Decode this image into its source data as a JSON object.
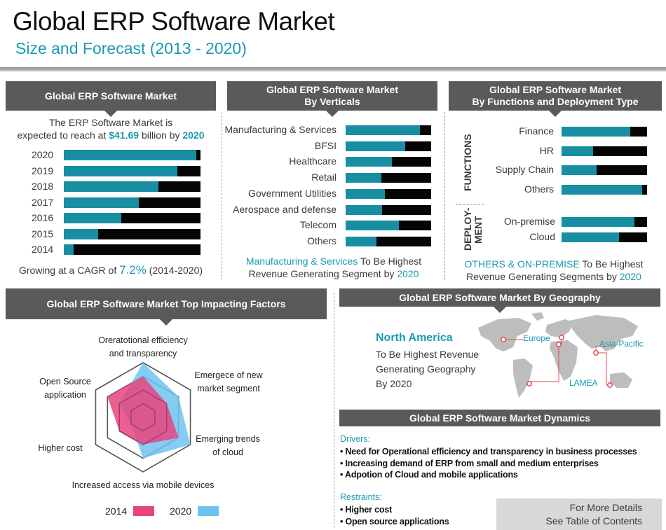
{
  "header": {
    "title": "Global ERP Software Market",
    "subtitle": "Size and Forecast (2013 - 2020)"
  },
  "colors": {
    "teal": "#188ea3",
    "black": "#050505",
    "header_gray": "#5a5a5a",
    "pink": "#e8437f",
    "light_blue": "#6ec3ee",
    "accent_text": "#1a9ab2"
  },
  "market": {
    "header": "Global ERP Software Market",
    "intro_1": "The ERP Software Market is",
    "intro_2a": "expected to reach at ",
    "intro_value": "$41.69",
    "intro_2b": " billion by ",
    "intro_year": "2020",
    "cagr_a": "Growing at a CAGR of ",
    "cagr_value": "7.2%",
    "cagr_b": " (2014-2020)"
  },
  "verticals": {
    "header_1": "Global ERP Software Market",
    "header_2": "By  Verticals",
    "caption_highlight": "Manufacturing & Services",
    "caption_a": " To Be Highest",
    "caption_b": "Revenue Generating Segment by ",
    "caption_year": "2020"
  },
  "functions": {
    "header_1": "Global ERP Software Market",
    "header_2": "By Functions and Deployment Type",
    "functions_label": "FUNCTIONS",
    "deployment_label_1": "DEPLOY-",
    "deployment_label_2": "MENT",
    "caption_highlight": "OTHERS & ON-PREMISE",
    "caption_a": " To Be Highest",
    "caption_b": "Revenue Generating Segments by ",
    "caption_year": "2020"
  },
  "factors": {
    "header": "Global ERP Software Market  Top Impacting Factors"
  },
  "geography": {
    "header": "Global ERP Software Market By Geography",
    "highlight": "North America",
    "text_1": "To Be Highest Revenue",
    "text_2": "Generating Geography",
    "text_3": "By 2020",
    "regions": [
      "Europe",
      "Asia-Pacific",
      "LAMEA"
    ]
  },
  "dynamics": {
    "header": "Global ERP Software Market Dynamics",
    "drivers_label": "Drivers:",
    "drivers": [
      "Need for Operational efficiency and transparency in business processes",
      "Increasing demand of ERP from small and medium enterprises",
      "Adpotion of Cloud and mobile applications"
    ],
    "restraints_label": "Restraints:",
    "restraints": [
      "Higher cost",
      "Open source applications"
    ]
  },
  "footer": {
    "more_1": "For More Details",
    "more_2": "See Table of Contents"
  },
  "chart_data": [
    {
      "type": "bar",
      "orientation": "horizontal",
      "title": "Global ERP Software Market",
      "categories": [
        "2020",
        "2019",
        "2018",
        "2017",
        "2016",
        "2015",
        "2014"
      ],
      "values": [
        0.97,
        0.83,
        0.69,
        0.55,
        0.42,
        0.25,
        0.07
      ],
      "value_unit": "share of full bar",
      "xlim": [
        0,
        1
      ]
    },
    {
      "type": "bar",
      "orientation": "horizontal",
      "title": "Global ERP Software Market By  Verticals",
      "categories": [
        "Manufacturing & Services",
        "BFSI",
        "Healthcare",
        "Retail",
        "Government Utilities",
        "Aerospace and defense",
        "Telecom",
        "Others"
      ],
      "values": [
        0.87,
        0.7,
        0.54,
        0.42,
        0.46,
        0.43,
        0.62,
        0.36
      ],
      "value_unit": "share of full bar",
      "xlim": [
        0,
        1
      ]
    },
    {
      "type": "bar",
      "orientation": "horizontal",
      "title": "By Functions",
      "group": "FUNCTIONS",
      "categories": [
        "Finance",
        "HR",
        "Supply Chain",
        "Others"
      ],
      "values": [
        0.8,
        0.37,
        0.41,
        0.94
      ],
      "value_unit": "share of full bar",
      "xlim": [
        0,
        1
      ]
    },
    {
      "type": "bar",
      "orientation": "horizontal",
      "title": "By Deployment Type",
      "group": "DEPLOY-MENT",
      "categories": [
        "On-premise",
        "Cloud"
      ],
      "values": [
        0.85,
        0.67
      ],
      "value_unit": "share of full bar",
      "xlim": [
        0,
        1
      ]
    },
    {
      "type": "radar",
      "title": "Global ERP Software Market  Top Impacting Factors",
      "axes": [
        "Oreratotional efficiency and transparency",
        "Emergece of new market segment",
        "Emerging trends of cloud",
        "Increased access via mobile devices",
        "Higher cost",
        "Open Source application"
      ],
      "levels": 4,
      "series": [
        {
          "name": "2014",
          "color": "#e8437f",
          "values": [
            3,
            2,
            3,
            2,
            2,
            3
          ]
        },
        {
          "name": "2020",
          "color": "#6ec3ee",
          "values": [
            4,
            3,
            4,
            3,
            1,
            2
          ]
        }
      ]
    }
  ]
}
